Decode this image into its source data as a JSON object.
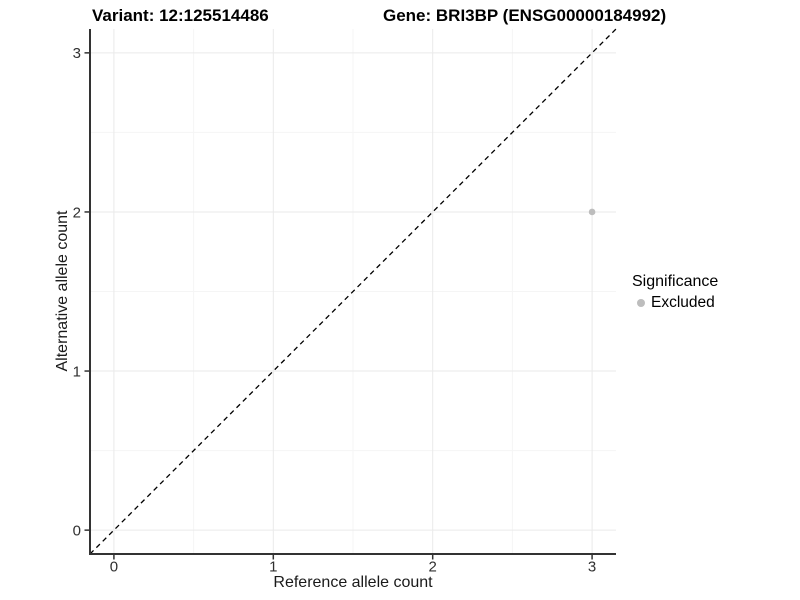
{
  "chart_data": {
    "type": "scatter",
    "title_left": "Variant: 12:125514486",
    "title_right": "Gene: BRI3BP (ENSG00000184992)",
    "xlabel": "Reference allele count",
    "ylabel": "Alternative allele count",
    "xlim": [
      -0.15,
      3.15
    ],
    "ylim": [
      -0.15,
      3.15
    ],
    "x_ticks": [
      0,
      1,
      2,
      3
    ],
    "y_ticks": [
      0,
      1,
      2,
      3
    ],
    "x_minor_ticks": [
      0.5,
      1.5,
      2.5
    ],
    "y_minor_ticks": [
      0.5,
      1.5,
      2.5
    ],
    "grid": "major+minor",
    "identity_line": {
      "style": "dashed",
      "color": "#000000",
      "from": [
        -0.15,
        -0.15
      ],
      "to": [
        3.15,
        3.15
      ]
    },
    "series": [
      {
        "name": "Excluded",
        "color": "#bdbdbd",
        "points": [
          {
            "x": 3,
            "y": 2
          }
        ]
      }
    ],
    "legend": {
      "title": "Significance",
      "position": "right-center",
      "items": [
        {
          "label": "Excluded",
          "color": "#bdbdbd",
          "marker": "circle"
        }
      ]
    }
  }
}
